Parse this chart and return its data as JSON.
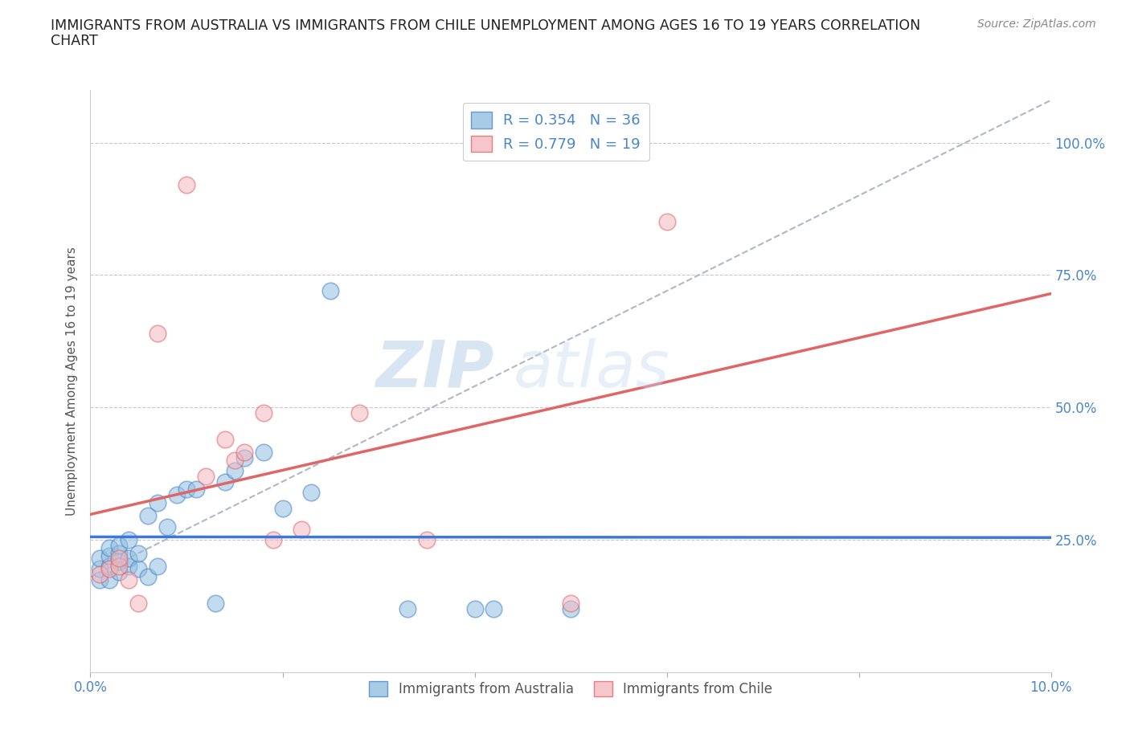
{
  "title_line1": "IMMIGRANTS FROM AUSTRALIA VS IMMIGRANTS FROM CHILE UNEMPLOYMENT AMONG AGES 16 TO 19 YEARS CORRELATION",
  "title_line2": "CHART",
  "source_text": "Source: ZipAtlas.com",
  "ylabel": "Unemployment Among Ages 16 to 19 years",
  "xlim": [
    0.0,
    0.1
  ],
  "ylim": [
    0.0,
    1.1
  ],
  "xticks": [
    0.0,
    0.02,
    0.04,
    0.06,
    0.08,
    0.1
  ],
  "ytick_positions": [
    0.0,
    0.25,
    0.5,
    0.75,
    1.0
  ],
  "australia_color": "#93bfe0",
  "chile_color": "#f4b8c1",
  "australia_edge": "#4a86c8",
  "chile_edge": "#e06666",
  "trend_australia_color": "#3c78d8",
  "trend_chile_color": "#e06666",
  "reference_line_color": "#b0b8c8",
  "grid_color": "#c8c8d0",
  "background_color": "#ffffff",
  "title_color": "#222222",
  "label_color": "#4a86c8",
  "R_australia": 0.354,
  "N_australia": 36,
  "R_chile": 0.779,
  "N_chile": 19,
  "watermark_zip": "ZIP",
  "watermark_atlas": "atlas",
  "aus_x": [
    0.001,
    0.001,
    0.001,
    0.002,
    0.002,
    0.002,
    0.002,
    0.003,
    0.003,
    0.003,
    0.003,
    0.004,
    0.004,
    0.004,
    0.005,
    0.005,
    0.006,
    0.006,
    0.007,
    0.007,
    0.008,
    0.009,
    0.01,
    0.011,
    0.013,
    0.014,
    0.015,
    0.016,
    0.018,
    0.02,
    0.023,
    0.025,
    0.033,
    0.04,
    0.042,
    0.05
  ],
  "aus_y": [
    0.175,
    0.195,
    0.215,
    0.175,
    0.2,
    0.22,
    0.235,
    0.19,
    0.21,
    0.225,
    0.24,
    0.2,
    0.215,
    0.25,
    0.195,
    0.225,
    0.18,
    0.295,
    0.2,
    0.32,
    0.275,
    0.335,
    0.345,
    0.345,
    0.13,
    0.36,
    0.38,
    0.405,
    0.415,
    0.31,
    0.34,
    0.72,
    0.12,
    0.12,
    0.12,
    0.12
  ],
  "chile_x": [
    0.001,
    0.002,
    0.003,
    0.003,
    0.004,
    0.005,
    0.007,
    0.01,
    0.012,
    0.014,
    0.015,
    0.016,
    0.018,
    0.019,
    0.022,
    0.028,
    0.035,
    0.05,
    0.06
  ],
  "chile_y": [
    0.185,
    0.195,
    0.2,
    0.215,
    0.175,
    0.13,
    0.64,
    0.92,
    0.37,
    0.44,
    0.4,
    0.415,
    0.49,
    0.25,
    0.27,
    0.49,
    0.25,
    0.13,
    0.85
  ]
}
